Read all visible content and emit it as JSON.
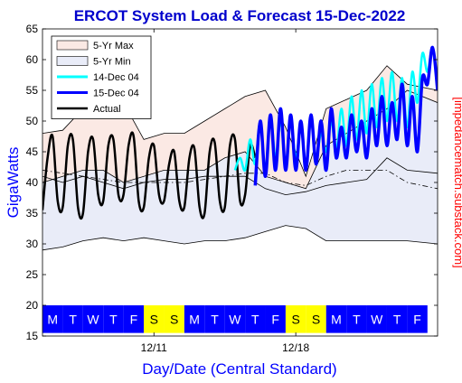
{
  "chart_data": {
    "type": "line",
    "title": "ERCOT System Load & Forecast 15-Dec-2022",
    "xlabel": "Day/Date (Central Standard)",
    "ylabel": "GigaWatts",
    "side_label": "[impedancematch.substack.com]",
    "ylim": [
      15,
      65
    ],
    "yticks": [
      15,
      20,
      25,
      30,
      35,
      40,
      45,
      50,
      55,
      60,
      65
    ],
    "xlim": [
      0,
      19.5
    ],
    "xticks": [
      {
        "label": "12/11",
        "x": 5.5
      },
      {
        "label": "12/18",
        "x": 12.5
      }
    ],
    "grid": false,
    "legend": {
      "position": "top-left",
      "entries": [
        {
          "label": "5-Yr Max",
          "type": "fill",
          "color": "#fbe9e4"
        },
        {
          "label": "5-Yr Min",
          "type": "fill",
          "color": "#e9ecf8"
        },
        {
          "label": "14-Dec 04",
          "type": "line",
          "color": "#00ffff"
        },
        {
          "label": "15-Dec 04",
          "type": "line",
          "color": "#0000ff"
        },
        {
          "label": "Actual",
          "type": "line",
          "color": "#000000"
        }
      ]
    },
    "day_strip": {
      "y_range": [
        15.5,
        20
      ],
      "weekday_color": "#0000ff",
      "weekend_color": "#ffff00",
      "days": [
        "M",
        "T",
        "W",
        "T",
        "F",
        "S",
        "S",
        "M",
        "T",
        "W",
        "T",
        "F",
        "S",
        "S",
        "M",
        "T",
        "W",
        "T",
        "F"
      ],
      "weekend": [
        false,
        false,
        false,
        false,
        false,
        true,
        true,
        false,
        false,
        false,
        false,
        false,
        true,
        true,
        false,
        false,
        false,
        false,
        false
      ]
    },
    "series": [
      {
        "name": "5-Yr Max",
        "role": "band_top",
        "color": "#000000",
        "x": [
          0,
          1,
          2,
          3,
          4,
          5,
          6,
          7,
          8,
          9,
          10,
          11,
          12,
          13,
          14,
          15,
          16,
          17,
          18,
          19.5
        ],
        "y": [
          48,
          48.5,
          52,
          54.5,
          53,
          47,
          48,
          48,
          50,
          52,
          54,
          55,
          49,
          41,
          52,
          53.5,
          55,
          59,
          56,
          55
        ]
      },
      {
        "name": "5-Yr Min",
        "role": "band_bottom",
        "color": "#000000",
        "x": [
          0,
          1,
          2,
          3,
          4,
          5,
          6,
          7,
          8,
          9,
          10,
          11,
          12,
          13,
          14,
          15,
          16,
          17,
          18,
          19.5
        ],
        "y": [
          29,
          29.5,
          30.5,
          31,
          30.5,
          31,
          30.5,
          30,
          30.5,
          30.5,
          31,
          32,
          33,
          32.5,
          30.5,
          30.5,
          30.5,
          30.5,
          30.5,
          30
        ]
      },
      {
        "name": "Upper reference",
        "role": "reference",
        "style": "solid",
        "color": "#000000",
        "x": [
          0,
          1,
          2,
          3,
          4,
          5,
          6,
          7,
          8,
          9,
          10,
          11,
          12,
          13,
          14,
          15,
          16,
          17,
          18,
          19.5
        ],
        "y": [
          40,
          41,
          42,
          42,
          40,
          41,
          42,
          42,
          42,
          44,
          45,
          41,
          40,
          39,
          46,
          48,
          50,
          52,
          55,
          53
        ]
      },
      {
        "name": "Dash-dot reference",
        "role": "reference",
        "style": "dashdot",
        "color": "#000000",
        "x": [
          0,
          1,
          2,
          3,
          4,
          5,
          6,
          7,
          8,
          9,
          10,
          11,
          12,
          13,
          14,
          15,
          16,
          17,
          18,
          19.5
        ],
        "y": [
          42,
          41.5,
          41,
          40.5,
          40,
          40,
          40,
          40,
          40.5,
          41,
          41.5,
          41.5,
          40,
          39.5,
          41,
          42,
          42,
          42,
          40,
          39
        ]
      },
      {
        "name": "Lower reference",
        "role": "reference",
        "style": "solid",
        "color": "#000000",
        "x": [
          0,
          1,
          2,
          3,
          4,
          5,
          6,
          7,
          8,
          9,
          10,
          11,
          12,
          13,
          14,
          15,
          16,
          17,
          18,
          19.5
        ],
        "y": [
          41,
          40,
          41,
          40,
          39,
          40,
          40.5,
          40.5,
          41,
          41,
          41,
          39,
          38,
          38.5,
          39.5,
          40,
          40.5,
          44,
          42,
          41.5
        ]
      },
      {
        "name": "Actual",
        "color": "#000000",
        "width": 2.5,
        "x": [
          0,
          0.25,
          0.5,
          0.75,
          1,
          1.25,
          1.5,
          1.75,
          2,
          2.25,
          2.5,
          2.75,
          3,
          3.25,
          3.5,
          3.75,
          4,
          4.25,
          4.5,
          4.75,
          5,
          5.25,
          5.5,
          5.75,
          6,
          6.25,
          6.5,
          6.75,
          7,
          7.25,
          7.5,
          7.75,
          8,
          8.25,
          8.5,
          8.75,
          9,
          9.25,
          9.5,
          9.75,
          10,
          10.25,
          10.5
        ],
        "y": [
          35.5,
          44,
          47.5,
          37,
          36,
          46,
          47,
          36,
          35,
          45,
          47,
          38,
          37,
          46,
          47,
          38,
          38,
          46,
          47.5,
          37,
          36,
          44,
          46,
          38,
          37,
          43,
          45,
          37,
          36,
          44,
          45.5,
          36,
          35,
          45,
          46.5,
          37,
          36,
          46,
          47,
          37,
          38,
          46,
          44
        ]
      },
      {
        "name": "14-Dec 04",
        "color": "#00ffff",
        "width": 2.5,
        "x": [
          9.5,
          9.75,
          10,
          10.25,
          10.5,
          10.75,
          11,
          11.25,
          11.5,
          11.75,
          12,
          12.25,
          12.5,
          12.75,
          13,
          13.25,
          13.5,
          13.75,
          14,
          14.25,
          14.5,
          14.75,
          15,
          15.25,
          15.5,
          15.75,
          16,
          16.25,
          16.5,
          16.75,
          17,
          17.25,
          17.5,
          17.75,
          18,
          18.25,
          18.5,
          18.75,
          19,
          19.25,
          19.5
        ],
        "y": [
          42,
          44,
          42,
          47,
          43,
          50,
          42,
          51,
          44,
          50,
          43,
          50,
          44,
          49,
          43,
          50,
          44,
          48,
          45,
          50,
          45,
          52,
          46,
          54,
          47,
          55,
          48,
          56,
          49,
          57,
          50,
          58,
          50,
          57,
          49,
          58,
          53,
          61,
          58,
          62,
          56
        ]
      },
      {
        "name": "15-Dec 04",
        "color": "#0000ff",
        "width": 3.5,
        "x": [
          10.5,
          10.75,
          11,
          11.25,
          11.5,
          11.75,
          12,
          12.25,
          12.5,
          12.75,
          13,
          13.25,
          13.5,
          13.75,
          14,
          14.25,
          14.5,
          14.75,
          15,
          15.25,
          15.5,
          15.75,
          16,
          16.25,
          16.5,
          16.75,
          17,
          17.25,
          17.5,
          17.75,
          18,
          18.25,
          18.5,
          18.75,
          19,
          19.25,
          19.5
        ],
        "y": [
          39.5,
          50,
          41,
          51,
          42,
          52,
          42,
          51,
          42,
          50,
          42,
          51,
          43,
          50,
          42,
          52,
          44,
          49,
          44,
          51,
          45,
          50,
          44,
          52,
          46,
          54,
          46,
          53,
          47,
          56,
          46,
          54,
          45,
          57,
          56,
          62,
          55
        ]
      }
    ]
  }
}
